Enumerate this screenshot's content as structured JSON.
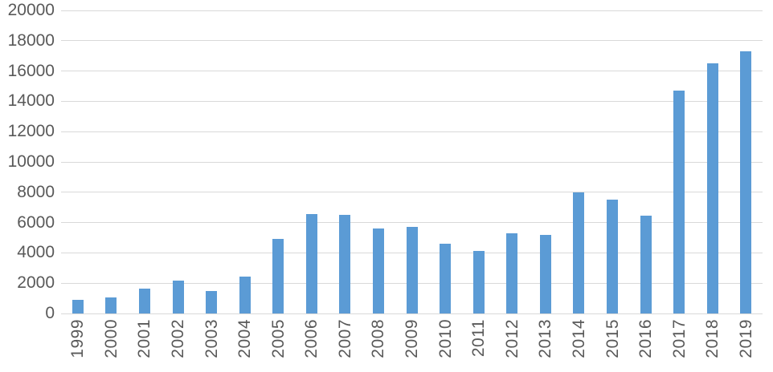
{
  "chart_data": {
    "type": "bar",
    "title": "",
    "xlabel": "",
    "ylabel": "",
    "categories": [
      "1999",
      "2000",
      "2001",
      "2002",
      "2003",
      "2004",
      "2005",
      "2006",
      "2007",
      "2008",
      "2009",
      "2010",
      "2011",
      "2012",
      "2013",
      "2014",
      "2015",
      "2016",
      "2017",
      "2018",
      "2019"
    ],
    "values": [
      880,
      1050,
      1650,
      2150,
      1500,
      2450,
      4900,
      6570,
      6500,
      5620,
      5690,
      4600,
      4150,
      5300,
      5180,
      7980,
      7520,
      6450,
      14690,
      16500,
      17300
    ],
    "ylim": [
      0,
      20000
    ],
    "ytick_step": 2000,
    "yticks": [
      0,
      2000,
      4000,
      6000,
      8000,
      10000,
      12000,
      14000,
      16000,
      18000,
      20000
    ],
    "ytick_labels": [
      "0",
      "2000",
      "4000",
      "6000",
      "8000",
      "10000",
      "12000",
      "14000",
      "16000",
      "18000",
      "20000"
    ],
    "grid": true,
    "legend": null,
    "colors": {
      "bar": "#5B9BD5",
      "gridline": "#D9D9D9",
      "tick_label": "#595959",
      "background": "#FFFFFF"
    }
  }
}
